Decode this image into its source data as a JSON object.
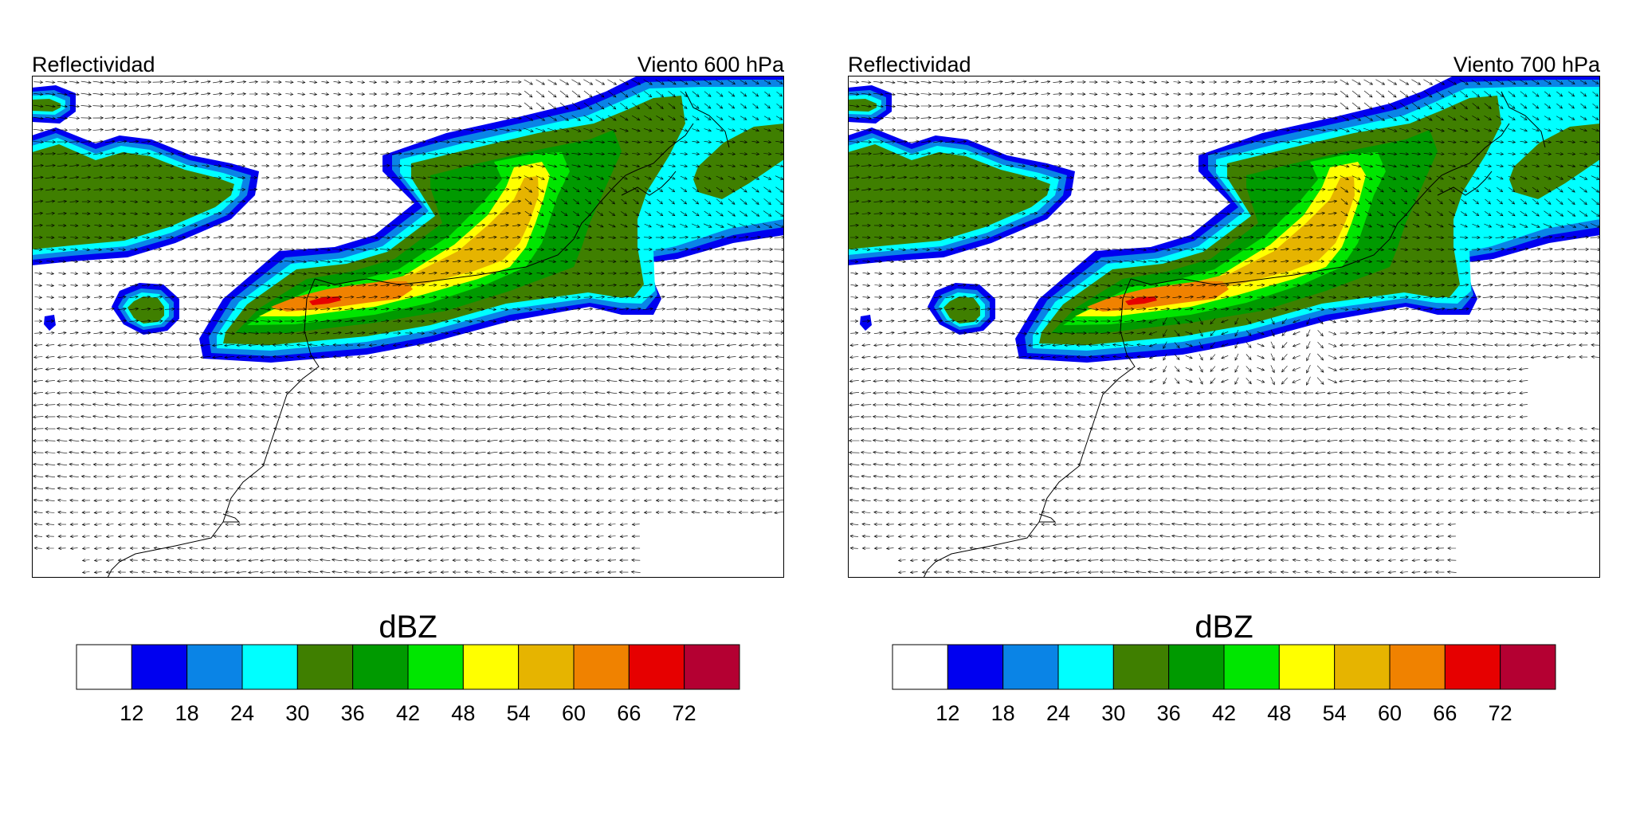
{
  "panels": [
    {
      "title_left": "Reflectividad",
      "title_right": "Viento 600 hPa",
      "level": "600 hPa"
    },
    {
      "title_left": "Reflectividad",
      "title_right": "Viento 700 hPa",
      "level": "700 hPa"
    }
  ],
  "colorbar": {
    "title": "dBZ",
    "labels": [
      "12",
      "18",
      "24",
      "30",
      "36",
      "42",
      "48",
      "54",
      "60",
      "66",
      "72"
    ],
    "colors": [
      "#ffffff",
      "#0000f0",
      "#0a84e6",
      "#00ffff",
      "#3f7f00",
      "#009a00",
      "#00e600",
      "#ffff00",
      "#e6b400",
      "#f08200",
      "#e60000",
      "#b40032"
    ]
  },
  "field_colors": {
    "c12": "#0000f0",
    "c18": "#0a84e6",
    "c24": "#00ffff",
    "c30": "#3f7f00",
    "c36": "#009a00",
    "c42": "#00e600",
    "c48": "#ffff00",
    "c54": "#e6b400",
    "c60": "#f08200",
    "c66": "#e60000"
  }
}
